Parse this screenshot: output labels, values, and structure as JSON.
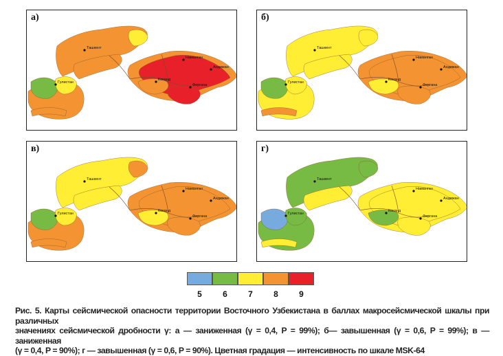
{
  "panels": [
    {
      "label": "а)",
      "colors": {
        "north": "#f39332",
        "northeast": "#ffee33",
        "tashkentband": "#f39332",
        "westblob": "#f39332",
        "westgreen": "#77bb44",
        "stripe": "#f39332",
        "wyellow": "#ffee33",
        "valley": "#e8202a",
        "valleyring": "#f39332",
        "kokand": "#f39332",
        "south": "#e8202a"
      }
    },
    {
      "label": "б)",
      "colors": {
        "north": "#ffee33",
        "northeast": "#ffee33",
        "tashkentband": "#ffee33",
        "westblob": "#ffee33",
        "westgreen": "#77bb44",
        "stripe": "#f39332",
        "wyellow": "#ffee33",
        "valley": "#f39332",
        "valleyring": "#f39332",
        "kokand": "#ffee33",
        "south": "#f39332"
      }
    },
    {
      "label": "в)",
      "colors": {
        "north": "#ffee33",
        "northeast": "#f39332",
        "tashkentband": "#ffee33",
        "westblob": "#f39332",
        "westgreen": "#77bb44",
        "stripe": "#f39332",
        "wyellow": "#ffee33",
        "valley": "#f39332",
        "valleyring": "#f39332",
        "kokand": "#ffee33",
        "south": "#f39332"
      }
    },
    {
      "label": "г)",
      "colors": {
        "north": "#77bb44",
        "northeast": "#77bb44",
        "tashkentband": "#ffee33",
        "westblob": "#77bb44",
        "westgreen": "#77aadd",
        "stripe": "#ffee33",
        "wyellow": "#77bb44",
        "valley": "#ffee33",
        "valleyring": "#ffee33",
        "kokand": "#77bb44",
        "south": "#ffee33"
      }
    }
  ],
  "cities": {
    "tashkent": "Ташкент",
    "gulistan": "Гулистан",
    "namangan": "Наманган",
    "andijan": "Андижан",
    "kokand": "Коканд",
    "fergana": "Фергана"
  },
  "legend": {
    "items": [
      {
        "value": "5",
        "color": "#77aadd"
      },
      {
        "value": "6",
        "color": "#77bb44"
      },
      {
        "value": "7",
        "color": "#ffee33"
      },
      {
        "value": "8",
        "color": "#f39332"
      },
      {
        "value": "9",
        "color": "#e8202a"
      }
    ]
  },
  "caption": {
    "line1": "Рис. 5. Карты сейсмической опасности территории Восточного Узбекистана в баллах макросейсмической шкалы при различных",
    "line2": "значениях сейсмической дробности γ: а — заниженная (γ = 0,4, P = 99%); б— завышенная (γ = 0,6, P = 99%); в — заниженная",
    "line3": "(γ = 0,4, P = 90%); г — завышенная (γ = 0,6, P = 90%). Цветная градация — интенсивность по шкале MSK-64"
  }
}
